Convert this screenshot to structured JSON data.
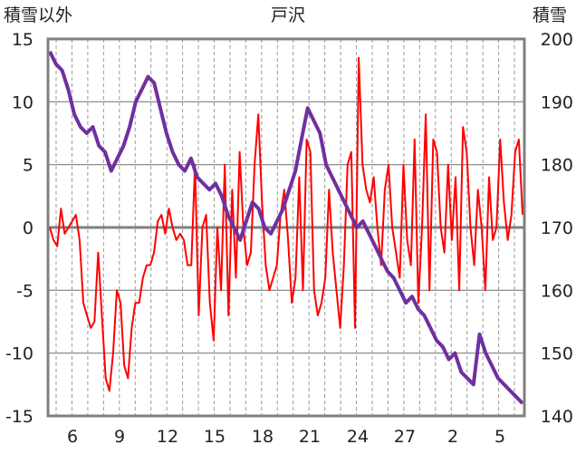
{
  "chart_data": {
    "type": "line",
    "title": "戸沢",
    "left_axis_label": "積雪以外",
    "right_axis_label": "積雪",
    "y_left": {
      "min": -15,
      "max": 15,
      "ticks": [
        15,
        10,
        5,
        0,
        -5,
        -10,
        -15
      ]
    },
    "y_right": {
      "min": 140,
      "max": 200,
      "ticks": [
        200,
        190,
        180,
        170,
        160,
        150,
        140
      ]
    },
    "x_ticks": [
      "6",
      "9",
      "12",
      "15",
      "18",
      "21",
      "24",
      "27",
      "2",
      "5"
    ],
    "grid": true,
    "series": [
      {
        "id": "temp",
        "axis": "left",
        "color": "#ff0000",
        "values": [
          0,
          -1,
          -1.5,
          1.5,
          -0.5,
          0,
          0.5,
          1,
          -1,
          -6,
          -7,
          -8,
          -7.5,
          -2,
          -7,
          -12,
          -13,
          -10,
          -5,
          -6,
          -11,
          -12,
          -8,
          -6,
          -6,
          -4,
          -3,
          -3,
          -2,
          0.5,
          1,
          -0.5,
          1.5,
          0,
          -1,
          -0.5,
          -1,
          -3,
          -3,
          5,
          -7,
          0,
          1,
          -6,
          -9,
          0,
          -5,
          5,
          -7,
          3,
          -4,
          6,
          0,
          -3,
          -2,
          5,
          9,
          2,
          -3,
          -5,
          -4,
          -3,
          1,
          3,
          -1,
          -6,
          -4,
          4,
          -5,
          7,
          6,
          -5,
          -7,
          -6,
          -4,
          3,
          -2,
          -5,
          -8,
          -3,
          5,
          6,
          -8,
          13.5,
          5,
          3,
          2,
          4,
          0,
          -3,
          3,
          5,
          0,
          -2,
          -4,
          5,
          -1,
          -3,
          7,
          -6,
          0,
          9,
          -5,
          7,
          6,
          0,
          -2,
          5,
          -1,
          4,
          -5,
          8,
          6,
          0,
          -3,
          3,
          0,
          -5,
          4,
          -1,
          0,
          7,
          2,
          -1,
          1,
          6,
          7,
          1
        ],
        "x_range": [
          3.5,
          34.5
        ]
      },
      {
        "id": "snow_depth",
        "axis": "right",
        "color": "#7030a0",
        "values": [
          198,
          196,
          195,
          192,
          188,
          186,
          185,
          186,
          183,
          182,
          179,
          181,
          183,
          186,
          190,
          192,
          194,
          193,
          189,
          185,
          182,
          180,
          179,
          181,
          178,
          177,
          176,
          177,
          175,
          172,
          170,
          168,
          171,
          174,
          173,
          170,
          169,
          171,
          173,
          176,
          179,
          184,
          189,
          187,
          185,
          180,
          178,
          176,
          174,
          172,
          170,
          171,
          169,
          167,
          165,
          163,
          162,
          160,
          158,
          159,
          157,
          156,
          154,
          152,
          151,
          149,
          150,
          147,
          146,
          145,
          153,
          150,
          148,
          146,
          145,
          144,
          143,
          142
        ],
        "x_range": [
          3.5,
          34.5
        ]
      }
    ]
  }
}
